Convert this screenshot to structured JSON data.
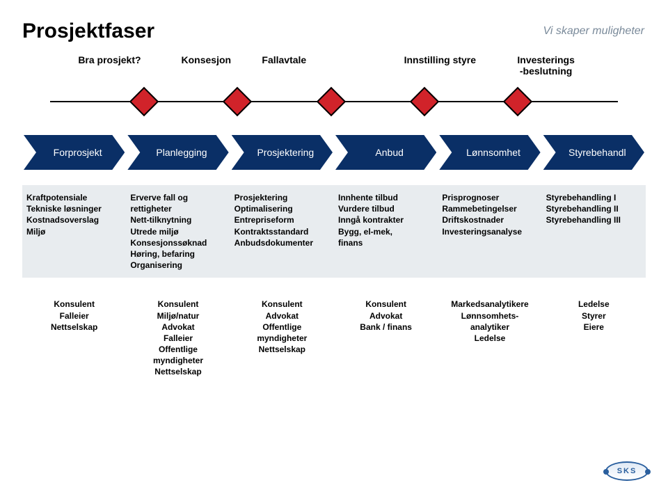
{
  "title": "Prosjektfaser",
  "tagline": "Vi skaper muligheter",
  "colors": {
    "diamond_fill": "#d1232a",
    "diamond_border": "#000000",
    "phase_fill": "#0a2f66",
    "band_bg": "#e8ecef",
    "line": "#000000"
  },
  "milestones": [
    {
      "label": "Bra prosjekt?",
      "left_pct": 14.0
    },
    {
      "label": "Konsesjon",
      "left_pct": 29.5
    },
    {
      "label": "Fallavtale",
      "left_pct": 42.0
    },
    {
      "label": "Innstilling styre",
      "left_pct": 67.0
    },
    {
      "label": "Investerings\n-beslutning",
      "left_pct": 84.0
    }
  ],
  "diamonds_left_pct": [
    19.5,
    34.5,
    49.5,
    64.5,
    79.5
  ],
  "phases": [
    {
      "label": "Forprosjekt"
    },
    {
      "label": "Planlegging"
    },
    {
      "label": "Prosjektering"
    },
    {
      "label": "Anbud"
    },
    {
      "label": "Lønnsomhet"
    },
    {
      "label": "Styrebehandl"
    }
  ],
  "details_row1": [
    [
      "Kraftpotensiale",
      "Tekniske løsninger",
      "Kostnadsoverslag",
      "Miljø"
    ],
    [
      "Erverve fall og",
      "rettigheter",
      "Nett-tilknytning",
      "Utrede miljø",
      "Konsesjonssøknad",
      "Høring, befaring",
      "Organisering"
    ],
    [
      "Prosjektering",
      "Optimalisering",
      "Entrepriseform",
      "Kontraktsstandard",
      "Anbudsdokumenter"
    ],
    [
      "Innhente tilbud",
      "Vurdere tilbud",
      "Inngå kontrakter",
      "Bygg, el-mek,",
      "finans"
    ],
    [
      "Prisprognoser",
      "Rammebetingelser",
      "Driftskostnader",
      "Investeringsanalyse"
    ],
    [
      "Styrebehandling I",
      "Styrebehandling II",
      "Styrebehandling III"
    ]
  ],
  "details_row2": [
    [
      "Konsulent",
      "Falleier",
      "Nettselskap"
    ],
    [
      "Konsulent",
      "Miljø/natur",
      "Advokat",
      "Falleier",
      "Offentlige",
      "myndigheter",
      "Nettselskap"
    ],
    [
      "Konsulent",
      "Advokat",
      "Offentlige",
      "myndigheter",
      "Nettselskap"
    ],
    [
      "Konsulent",
      "Advokat",
      "Bank / finans"
    ],
    [
      "Markedsanalytikere",
      "Lønnsomhets-",
      "analytiker",
      "Ledelse"
    ],
    [
      "Ledelse",
      "Styrer",
      "Eiere"
    ]
  ],
  "logo_text": "SKS"
}
